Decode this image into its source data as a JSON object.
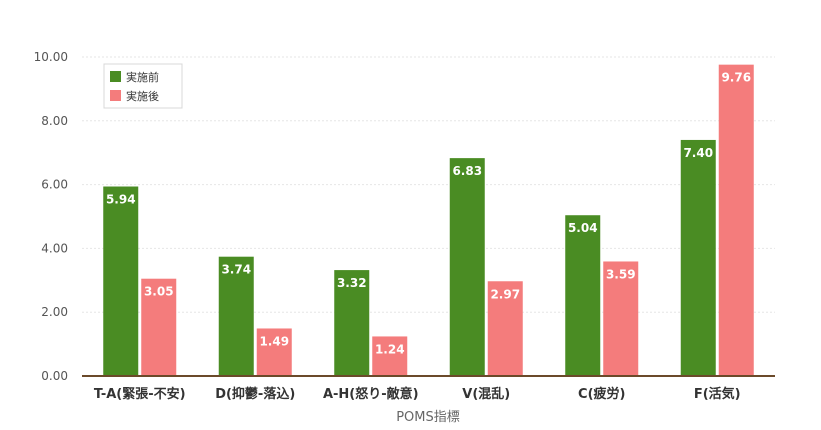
{
  "chart_data": {
    "type": "bar",
    "title": "",
    "xlabel": "POMS指標",
    "ylabel": "",
    "ylim": [
      0,
      10
    ],
    "yticks": [
      "0.00",
      "2.00",
      "4.00",
      "6.00",
      "8.00",
      "10.00"
    ],
    "categories": [
      "T-A(緊張-不安)",
      "D(抑鬱-落込)",
      "A-H(怒り-敵意)",
      "V(混乱)",
      "C(疲労)",
      "F(活気)"
    ],
    "series": [
      {
        "name": "実施前",
        "color": "#4a8c23",
        "values": [
          5.94,
          3.74,
          3.32,
          6.83,
          5.04,
          7.4
        ],
        "labels": [
          "5.94",
          "3.74",
          "3.32",
          "6.83",
          "5.04",
          "7.40"
        ]
      },
      {
        "name": "実施後",
        "color": "#f47c7c",
        "values": [
          3.05,
          1.49,
          1.24,
          2.97,
          3.59,
          9.76
        ],
        "labels": [
          "3.05",
          "1.49",
          "1.24",
          "2.97",
          "3.59",
          "9.76"
        ]
      }
    ],
    "legend": "top-left",
    "grid": true
  }
}
